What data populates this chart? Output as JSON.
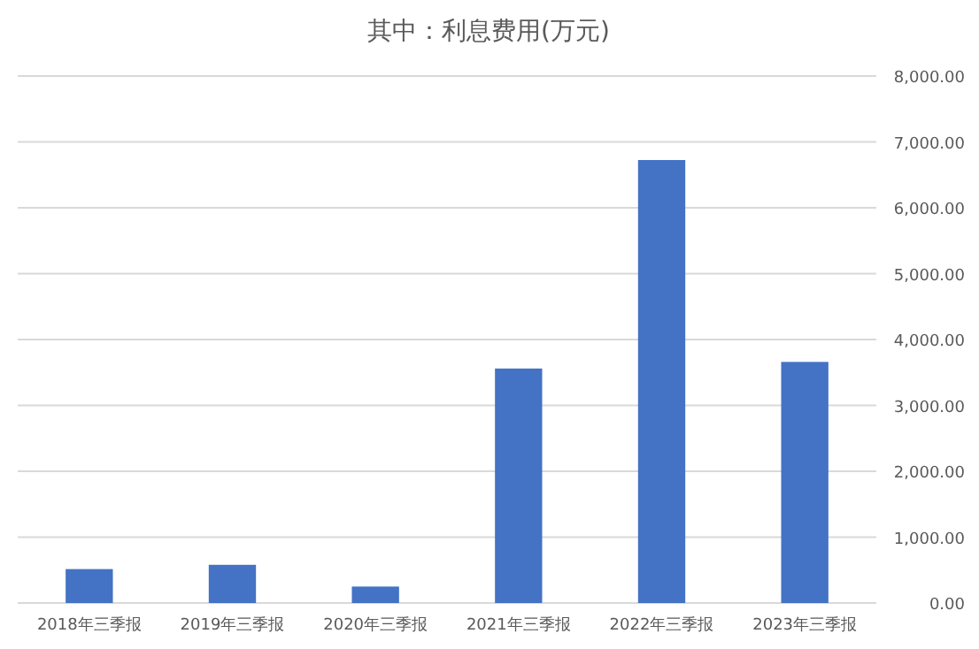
{
  "chart_data": {
    "type": "bar",
    "title": "其中：利息费用(万元)",
    "categories": [
      "2018年三季报",
      "2019年三季报",
      "2020年三季报",
      "2021年三季报",
      "2022年三季报",
      "2023年三季报"
    ],
    "values": [
      515,
      580,
      250,
      3560,
      6725,
      3660
    ],
    "color": "#4472c4",
    "ylim": [
      0,
      8000
    ],
    "yticks": [
      {
        "value": 0,
        "label": "0.00"
      },
      {
        "value": 1000,
        "label": "1,000.00"
      },
      {
        "value": 2000,
        "label": "2,000.00"
      },
      {
        "value": 3000,
        "label": "3,000.00"
      },
      {
        "value": 4000,
        "label": "4,000.00"
      },
      {
        "value": 5000,
        "label": "5,000.00"
      },
      {
        "value": 6000,
        "label": "6,000.00"
      },
      {
        "value": 7000,
        "label": "7,000.00"
      },
      {
        "value": 8000,
        "label": "8,000.00"
      }
    ],
    "grid": "y",
    "legend": false
  }
}
